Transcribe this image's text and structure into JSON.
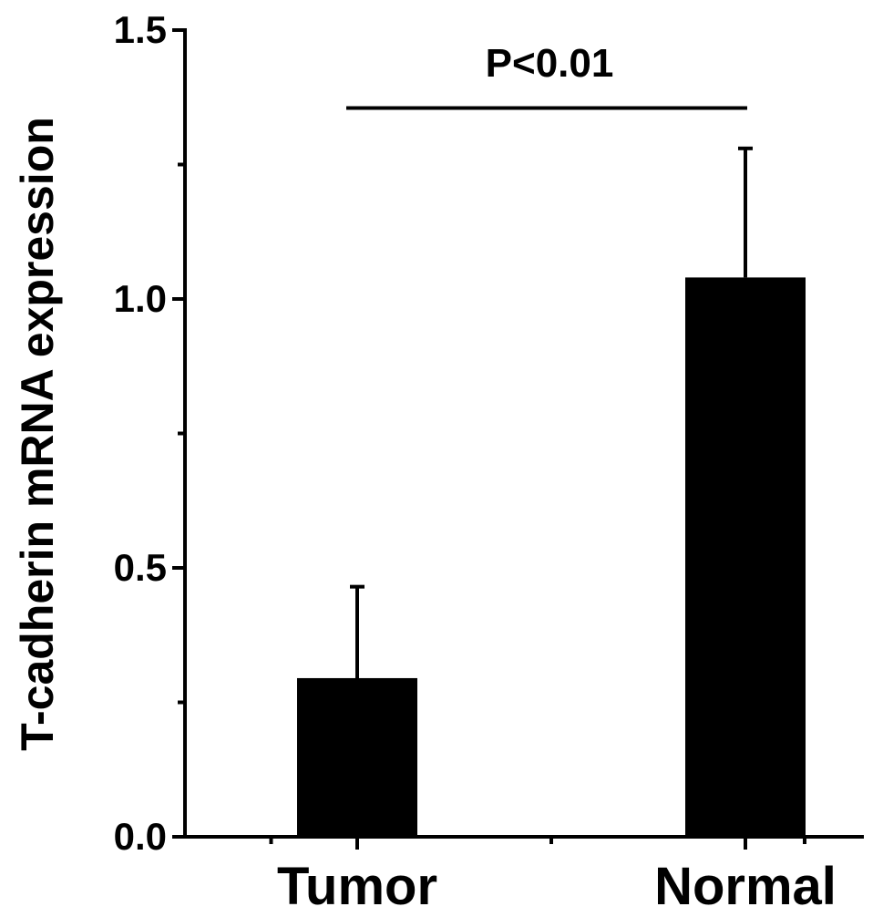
{
  "chart_data": {
    "type": "bar",
    "categories": [
      "Tumor",
      "Normal"
    ],
    "values": [
      0.295,
      1.04
    ],
    "error_upper": [
      0.465,
      1.28
    ],
    "ylabel": "T-cadherin mRNA expression",
    "xlabel": "",
    "ylim": [
      0,
      1.5
    ],
    "yticks": [
      {
        "value": 0.0,
        "label": "0.0"
      },
      {
        "value": 0.5,
        "label": "0.5"
      },
      {
        "value": 1.0,
        "label": "1.0"
      },
      {
        "value": 1.5,
        "label": "1.5"
      }
    ],
    "minor_yticks": [
      0.25,
      0.75,
      1.25
    ],
    "significance": {
      "label": "P<0.01",
      "between": [
        "Tumor",
        "Normal"
      ],
      "level": 1.355
    },
    "bar_color": "#000000",
    "grid": false,
    "legend": "none"
  }
}
